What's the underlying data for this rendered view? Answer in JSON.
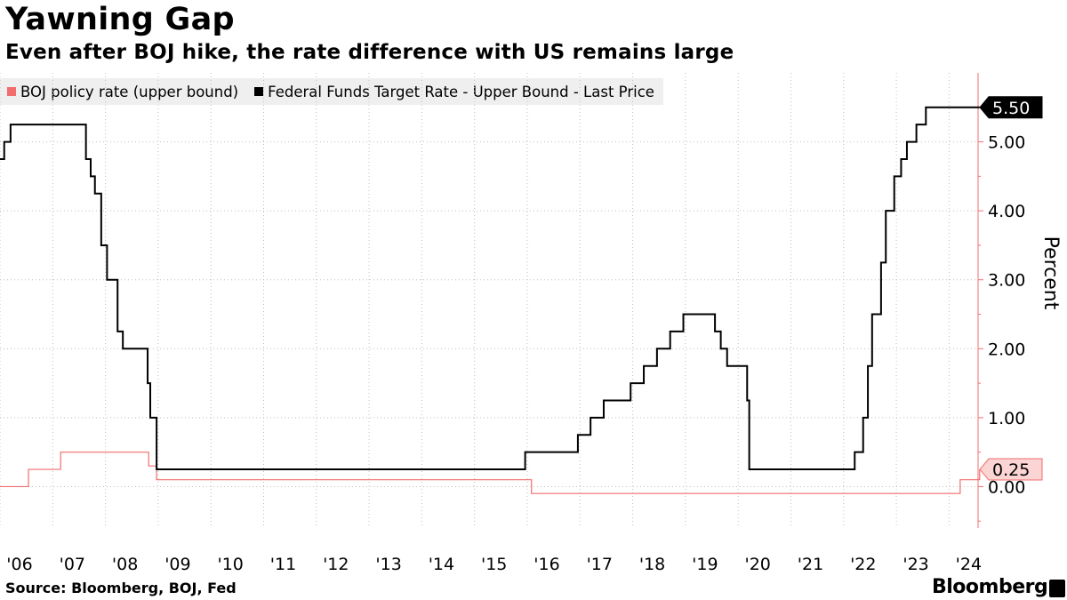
{
  "title": "Yawning Gap",
  "subtitle": "Even after BOJ hike, the rate difference with US remains large",
  "legend": [
    {
      "label": "BOJ policy rate (upper bound)",
      "color": "#f26d6d"
    },
    {
      "label": "Federal Funds Target Rate - Upper Bound - Last Price",
      "color": "#000000"
    }
  ],
  "source": "Source: Bloomberg, BOJ, Fed",
  "brand": "Bloomberg",
  "chart_data": {
    "type": "line",
    "ylabel": "Percent",
    "ylim": [
      -0.6,
      6.0
    ],
    "yticks": [
      0.0,
      1.0,
      2.0,
      3.0,
      4.0,
      5.0
    ],
    "ytick_labels": [
      "0.00",
      "1.00",
      "2.00",
      "3.00",
      "4.00",
      "5.00"
    ],
    "xlim": [
      2006.0,
      2024.55
    ],
    "xticks": [
      2006,
      2007,
      2008,
      2009,
      2010,
      2011,
      2012,
      2013,
      2014,
      2015,
      2016,
      2017,
      2018,
      2019,
      2020,
      2021,
      2022,
      2023,
      2024
    ],
    "xtick_labels": [
      "'06",
      "'07",
      "'08",
      "'09",
      "'10",
      "'11",
      "'12",
      "'13",
      "'14",
      "'15",
      "'16",
      "'17",
      "'18",
      "'19",
      "'20",
      "'21",
      "'22",
      "'23",
      "'24"
    ],
    "series": [
      {
        "name": "BOJ policy rate (upper bound)",
        "color": "#f26d6d",
        "last_label": "0.25",
        "x": [
          2006.0,
          2006.54,
          2007.15,
          2008.82,
          2008.97,
          2016.08,
          2024.21,
          2024.58
        ],
        "y": [
          0.0,
          0.25,
          0.5,
          0.3,
          0.1,
          -0.1,
          0.1,
          0.25
        ]
      },
      {
        "name": "Federal Funds Target Rate - Upper Bound - Last Price",
        "color": "#000000",
        "last_label": "5.50",
        "x": [
          2006.0,
          2006.08,
          2006.2,
          2006.46,
          2007.63,
          2007.72,
          2007.8,
          2007.92,
          2008.03,
          2008.08,
          2008.23,
          2008.25,
          2008.33,
          2008.8,
          2008.85,
          2008.97,
          2015.96,
          2016.96,
          2017.2,
          2017.45,
          2017.96,
          2018.21,
          2018.46,
          2018.71,
          2018.96,
          2019.56,
          2019.67,
          2019.79,
          2020.17,
          2020.21,
          2022.21,
          2022.37,
          2022.46,
          2022.54,
          2022.71,
          2022.8,
          2022.96,
          2023.09,
          2023.2,
          2023.38,
          2023.56,
          2024.58
        ],
        "y": [
          4.75,
          5.0,
          5.25,
          5.25,
          4.75,
          4.5,
          4.25,
          3.5,
          3.0,
          3.0,
          2.25,
          2.25,
          2.0,
          1.5,
          1.0,
          0.25,
          0.5,
          0.75,
          1.0,
          1.25,
          1.5,
          1.75,
          2.0,
          2.25,
          2.5,
          2.25,
          2.0,
          1.75,
          1.25,
          0.25,
          0.5,
          1.0,
          1.75,
          2.5,
          3.25,
          4.0,
          4.5,
          4.75,
          5.0,
          5.25,
          5.5,
          5.5
        ]
      }
    ]
  }
}
